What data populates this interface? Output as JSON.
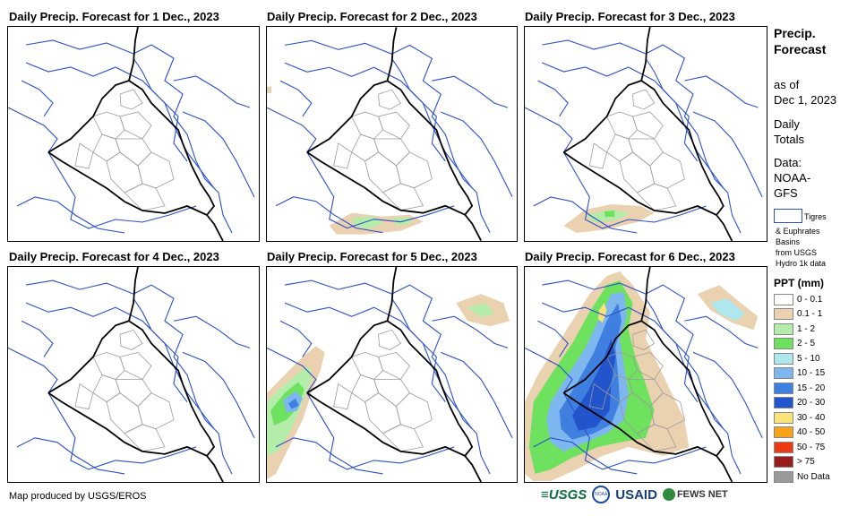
{
  "panels": [
    {
      "title": "Daily Precip. Forecast for 1 Dec., 2023",
      "day": 1
    },
    {
      "title": "Daily Precip. Forecast for 2 Dec., 2023",
      "day": 2
    },
    {
      "title": "Daily Precip. Forecast for 3 Dec., 2023",
      "day": 3
    },
    {
      "title": "Daily Precip. Forecast for 4 Dec., 2023",
      "day": 4
    },
    {
      "title": "Daily Precip. Forecast for 5 Dec., 2023",
      "day": 5
    },
    {
      "title": "Daily Precip. Forecast for 6 Dec., 2023",
      "day": 6
    }
  ],
  "sidebar": {
    "title_line1": "Precip.",
    "title_line2": "Forecast",
    "asof_line1": "as of",
    "asof_line2": "Dec 1, 2023",
    "totals_line1": "Daily",
    "totals_line2": "Totals",
    "data_line1": "Data:",
    "data_line2": "NOAA-",
    "data_line3": "GFS",
    "basin_label": "Tigres",
    "basin_note1": "& Euphrates",
    "basin_note2": "Basins",
    "basin_note3": "from USGS",
    "basin_note4": "Hydro 1k data"
  },
  "legend": {
    "title": "PPT (mm)",
    "items": [
      {
        "label": "0 - 0.1",
        "color": "#ffffff"
      },
      {
        "label": "0.1 - 1",
        "color": "#ead2b0"
      },
      {
        "label": "1 - 2",
        "color": "#b4ecaa"
      },
      {
        "label": "2 - 5",
        "color": "#6ee25f"
      },
      {
        "label": "5 - 10",
        "color": "#aee7ee"
      },
      {
        "label": "10 - 15",
        "color": "#7eb6ef"
      },
      {
        "label": "15 - 20",
        "color": "#3e7fe0"
      },
      {
        "label": "20 - 30",
        "color": "#2255cc"
      },
      {
        "label": "30 - 40",
        "color": "#fbe37a"
      },
      {
        "label": "40 - 50",
        "color": "#f6a21a"
      },
      {
        "label": "50 - 75",
        "color": "#ee3a12"
      },
      {
        "label": "> 75",
        "color": "#9a1c1c"
      },
      {
        "label": "No Data",
        "color": "#9a9a9a"
      }
    ]
  },
  "footer": {
    "credit": "Map produced by USGS/EROS",
    "logo_usgs": "≡USGS",
    "logo_noaa": "NOAA",
    "logo_usaid": "USAID",
    "logo_fews": "FEWS NET"
  },
  "colors": {
    "basin": "#2a4fc9",
    "border": "#000000",
    "admin": "#9a9a9a"
  }
}
